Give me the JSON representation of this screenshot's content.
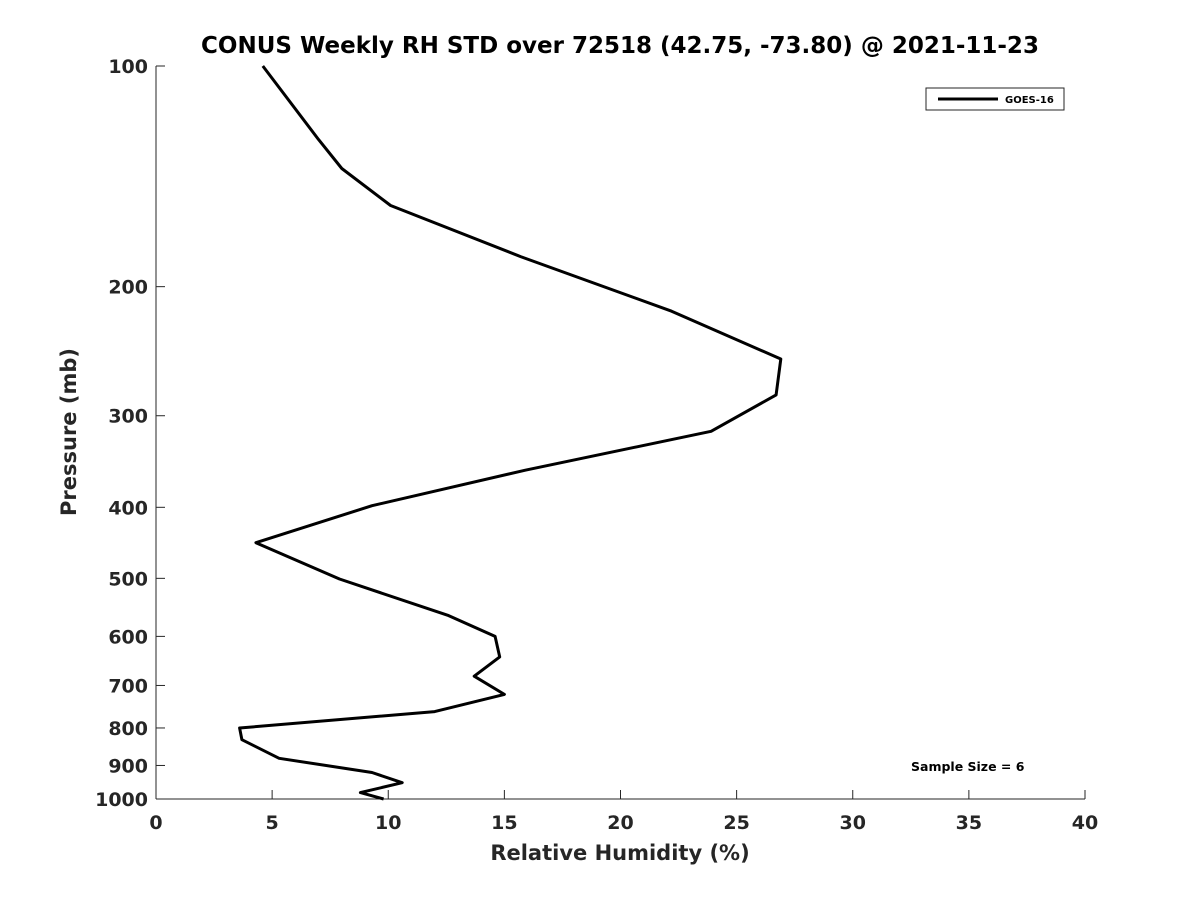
{
  "chart_data": {
    "type": "line",
    "title": "CONUS Weekly RH STD over 72518 (42.75, -73.80) @ 2021-11-23",
    "xlabel": "Relative Humidity (%)",
    "ylabel": "Pressure (mb)",
    "xlim": [
      0,
      40
    ],
    "ylim": [
      100,
      1000
    ],
    "y_scale": "log",
    "y_reversed": true,
    "x_ticks": [
      0,
      5,
      10,
      15,
      20,
      25,
      30,
      35,
      40
    ],
    "y_ticks": [
      100,
      200,
      300,
      400,
      500,
      600,
      700,
      800,
      900,
      1000
    ],
    "grid": false,
    "legend_position": "top-right",
    "annotation": "Sample Size = 6",
    "series": [
      {
        "name": "GOES-16",
        "color": "#000000",
        "points": [
          {
            "x": 4.6,
            "p": 100
          },
          {
            "x": 7.0,
            "p": 126
          },
          {
            "x": 8.0,
            "p": 138
          },
          {
            "x": 10.1,
            "p": 155
          },
          {
            "x": 15.7,
            "p": 182
          },
          {
            "x": 22.2,
            "p": 216
          },
          {
            "x": 26.9,
            "p": 251
          },
          {
            "x": 26.7,
            "p": 281
          },
          {
            "x": 23.9,
            "p": 315
          },
          {
            "x": 15.9,
            "p": 356
          },
          {
            "x": 9.3,
            "p": 398
          },
          {
            "x": 4.3,
            "p": 447
          },
          {
            "x": 7.9,
            "p": 501
          },
          {
            "x": 12.6,
            "p": 562
          },
          {
            "x": 14.6,
            "p": 600
          },
          {
            "x": 14.8,
            "p": 640
          },
          {
            "x": 13.7,
            "p": 680
          },
          {
            "x": 15.0,
            "p": 720
          },
          {
            "x": 12.0,
            "p": 760
          },
          {
            "x": 3.6,
            "p": 800
          },
          {
            "x": 3.7,
            "p": 830
          },
          {
            "x": 5.3,
            "p": 880
          },
          {
            "x": 9.3,
            "p": 920
          },
          {
            "x": 10.6,
            "p": 950
          },
          {
            "x": 8.8,
            "p": 980
          },
          {
            "x": 9.8,
            "p": 1000
          }
        ]
      }
    ]
  }
}
